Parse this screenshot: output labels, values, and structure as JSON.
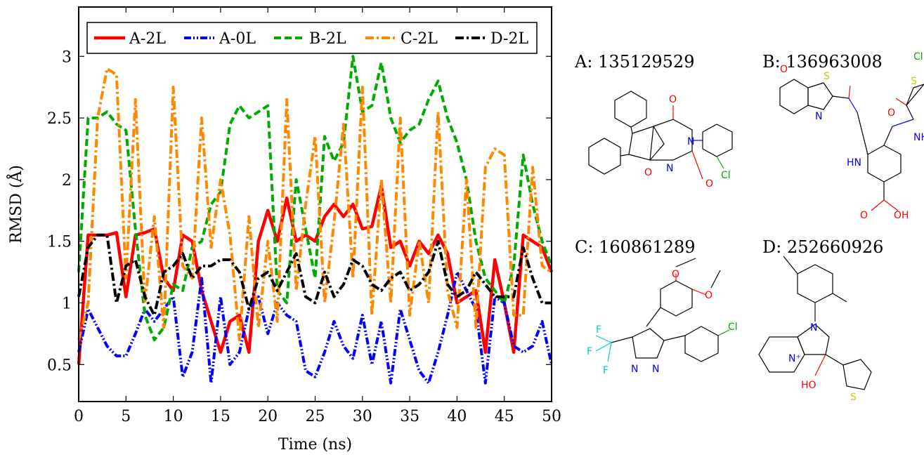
{
  "chart_data": {
    "type": "line",
    "xlabel": "Time (ns)",
    "ylabel": "RMSD (Å)",
    "xlim": [
      0,
      50
    ],
    "ylim": [
      0.2,
      3.4
    ],
    "xticks": [
      0,
      5,
      10,
      15,
      20,
      25,
      30,
      35,
      40,
      45,
      50
    ],
    "yticks": [
      0.5,
      1,
      1.5,
      2,
      2.5,
      3
    ],
    "ytick_labels": [
      "0.5",
      "1",
      "1.5",
      "2",
      "2.5",
      "3"
    ],
    "legend_position": "top",
    "grid": false,
    "x": [
      0,
      1,
      2,
      3,
      4,
      5,
      6,
      7,
      8,
      9,
      10,
      11,
      12,
      13,
      14,
      15,
      16,
      17,
      18,
      19,
      20,
      21,
      22,
      23,
      24,
      25,
      26,
      27,
      28,
      29,
      30,
      31,
      32,
      33,
      34,
      35,
      36,
      37,
      38,
      39,
      40,
      41,
      42,
      43,
      44,
      45,
      46,
      47,
      48,
      49,
      50
    ],
    "series": [
      {
        "name": "A-2L",
        "color": "#ff0000",
        "style": "solid",
        "values": [
          0.5,
          1.55,
          1.55,
          1.55,
          1.57,
          1.05,
          1.55,
          1.57,
          1.6,
          1.2,
          1.1,
          1.55,
          1.5,
          1.1,
          0.85,
          0.6,
          0.85,
          0.9,
          0.6,
          1.5,
          1.75,
          1.5,
          1.85,
          1.5,
          1.55,
          1.5,
          1.7,
          1.8,
          1.7,
          1.8,
          1.6,
          1.62,
          1.95,
          1.45,
          1.5,
          1.3,
          1.5,
          1.4,
          1.55,
          1.4,
          1.0,
          1.05,
          1.1,
          0.6,
          1.35,
          1.0,
          0.6,
          1.55,
          1.5,
          1.45,
          1.25
        ]
      },
      {
        "name": "A-0L",
        "color": "#0000ff",
        "style": "dashdotdot",
        "values": [
          0.6,
          0.95,
          0.8,
          0.65,
          0.57,
          0.57,
          0.75,
          0.95,
          0.85,
          0.95,
          1.05,
          0.4,
          0.6,
          1.2,
          0.35,
          1.05,
          0.5,
          0.6,
          0.95,
          1.05,
          0.75,
          1.0,
          0.9,
          0.85,
          0.45,
          0.4,
          0.6,
          0.85,
          0.65,
          0.55,
          0.9,
          0.5,
          0.85,
          0.35,
          0.95,
          0.7,
          0.45,
          0.35,
          0.6,
          0.9,
          1.25,
          1.1,
          0.95,
          0.35,
          1.05,
          1.0,
          0.65,
          0.6,
          0.65,
          0.85,
          0.5
        ]
      },
      {
        "name": "B-2L",
        "color": "#00aa00",
        "style": "dashed",
        "values": [
          1.25,
          2.5,
          2.5,
          2.55,
          2.45,
          2.4,
          1.6,
          0.9,
          0.7,
          0.8,
          1.15,
          1.1,
          1.45,
          1.5,
          1.8,
          1.9,
          2.45,
          2.6,
          2.5,
          2.55,
          2.6,
          1.1,
          1.0,
          2.0,
          1.6,
          1.2,
          2.35,
          2.15,
          2.3,
          3.0,
          2.55,
          2.6,
          2.95,
          2.5,
          2.3,
          2.4,
          2.45,
          2.65,
          2.8,
          2.5,
          2.3,
          2.0,
          1.5,
          1.2,
          1.1,
          1.0,
          1.3,
          2.2,
          1.8,
          1.5,
          1.3
        ]
      },
      {
        "name": "C-2L",
        "color": "#ff8800",
        "style": "dashdot",
        "values": [
          0.7,
          1.0,
          2.5,
          2.9,
          2.85,
          1.2,
          2.65,
          1.0,
          1.7,
          0.8,
          2.75,
          1.3,
          1.2,
          2.5,
          1.45,
          2.0,
          1.55,
          0.7,
          1.7,
          0.8,
          1.5,
          0.85,
          2.65,
          1.1,
          1.8,
          2.35,
          1.0,
          1.65,
          2.45,
          1.2,
          2.75,
          0.9,
          2.0,
          1.0,
          2.5,
          0.9,
          1.5,
          1.0,
          2.55,
          1.1,
          0.8,
          2.0,
          0.8,
          2.1,
          2.25,
          2.2,
          0.9,
          0.9,
          2.1,
          1.3,
          1.25
        ]
      },
      {
        "name": "D-2L",
        "color": "#000000",
        "style": "dashdot",
        "values": [
          1.05,
          1.45,
          1.55,
          1.55,
          1.0,
          1.3,
          1.35,
          1.05,
          0.9,
          1.25,
          1.3,
          1.4,
          1.2,
          1.3,
          1.3,
          1.35,
          1.35,
          1.25,
          0.95,
          1.2,
          1.25,
          1.1,
          1.25,
          1.4,
          1.05,
          1.0,
          1.25,
          1.05,
          1.15,
          1.35,
          1.3,
          1.15,
          1.1,
          1.2,
          1.25,
          1.1,
          1.15,
          1.25,
          1.5,
          1.15,
          1.05,
          1.1,
          1.25,
          1.15,
          1.05,
          1.05,
          1.05,
          1.45,
          1.2,
          1.0,
          1.0
        ]
      }
    ]
  },
  "molecules": [
    {
      "label": "A: 135129529"
    },
    {
      "label": "B: 136963008"
    },
    {
      "label": "C: 160861289"
    },
    {
      "label": "D: 252660926"
    }
  ]
}
